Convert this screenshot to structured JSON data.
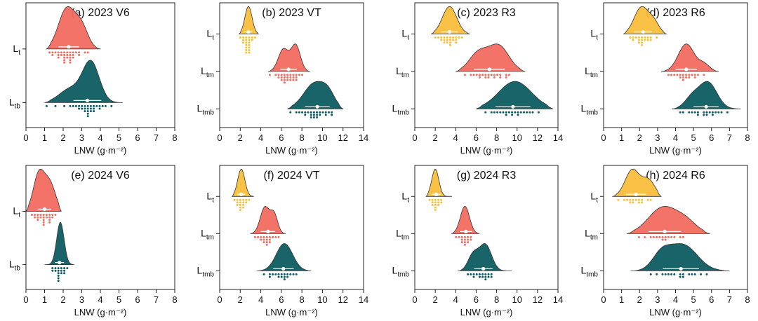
{
  "chart_data": [
    {
      "type": "raincloud",
      "title": "(a) 2023  V6",
      "xlabel": "LNW (g·m⁻²)",
      "xlim": [
        0,
        8
      ],
      "xticks": [
        0,
        1,
        2,
        3,
        4,
        5,
        6,
        7,
        8
      ],
      "series": [
        {
          "name": "Lt",
          "label_main": "L",
          "label_sub": "t",
          "color": "#F36B61",
          "mean": 2.3,
          "sd": 0.55,
          "min": 1.1,
          "max": 4.0,
          "bumps": [
            {
              "c": 2.2,
              "s": 0.45,
              "a": 1.0
            },
            {
              "c": 3.0,
              "s": 0.35,
              "a": 0.5
            }
          ],
          "points": [
            1.2,
            1.4,
            1.5,
            1.6,
            1.7,
            1.8,
            1.8,
            1.9,
            1.9,
            2.0,
            2.0,
            2.1,
            2.1,
            2.1,
            2.2,
            2.2,
            2.2,
            2.3,
            2.3,
            2.3,
            2.4,
            2.4,
            2.5,
            2.5,
            2.6,
            2.7,
            2.8,
            2.9,
            3.1,
            3.4
          ]
        },
        {
          "name": "Ltb",
          "label_main": "L",
          "label_sub": "tb",
          "color": "#0D5C61",
          "mean": 3.3,
          "sd": 0.75,
          "min": 1.0,
          "max": 5.2,
          "bumps": [
            {
              "c": 3.5,
              "s": 0.45,
              "a": 1.0
            },
            {
              "c": 2.4,
              "s": 0.6,
              "a": 0.35
            }
          ],
          "points": [
            1.1,
            1.6,
            2.0,
            2.3,
            2.5,
            2.7,
            2.8,
            2.9,
            3.0,
            3.0,
            3.1,
            3.2,
            3.2,
            3.3,
            3.3,
            3.4,
            3.4,
            3.4,
            3.5,
            3.5,
            3.5,
            3.6,
            3.6,
            3.7,
            3.8,
            3.9,
            4.0,
            4.1,
            4.3,
            4.6
          ]
        }
      ]
    },
    {
      "type": "raincloud",
      "title": "(b) 2023  VT",
      "xlabel": "LNW (g·m⁻²)",
      "xlim": [
        0,
        14
      ],
      "xticks": [
        0,
        2,
        4,
        6,
        8,
        10,
        12,
        14
      ],
      "series": [
        {
          "name": "Lt",
          "label_main": "L",
          "label_sub": "t",
          "color": "#F9BE3B",
          "mean": 2.8,
          "sd": 0.4,
          "min": 1.9,
          "max": 3.8,
          "bumps": [
            {
              "c": 2.8,
              "s": 0.35,
              "a": 1.0
            }
          ],
          "points": [
            2.0,
            2.2,
            2.3,
            2.4,
            2.5,
            2.5,
            2.6,
            2.6,
            2.7,
            2.7,
            2.7,
            2.8,
            2.8,
            2.8,
            2.9,
            2.9,
            3.0,
            3.0,
            3.1,
            3.2,
            3.3
          ]
        },
        {
          "name": "Ltm",
          "label_main": "L",
          "label_sub": "tm",
          "color": "#F36B61",
          "mean": 6.7,
          "sd": 0.8,
          "min": 4.7,
          "max": 8.8,
          "bumps": [
            {
              "c": 6.2,
              "s": 0.5,
              "a": 0.85
            },
            {
              "c": 7.4,
              "s": 0.45,
              "a": 1.0
            }
          ],
          "points": [
            5.0,
            5.4,
            5.6,
            5.8,
            5.9,
            6.0,
            6.1,
            6.2,
            6.2,
            6.3,
            6.4,
            6.5,
            6.6,
            6.7,
            6.8,
            6.9,
            7.0,
            7.1,
            7.2,
            7.3,
            7.4,
            7.5,
            7.6,
            7.8,
            8.0
          ]
        },
        {
          "name": "Ltmb",
          "label_main": "L",
          "label_sub": "tmb",
          "color": "#0D5C61",
          "mean": 9.5,
          "sd": 1.2,
          "min": 6.6,
          "max": 12.0,
          "bumps": [
            {
              "c": 9.3,
              "s": 1.1,
              "a": 1.0
            },
            {
              "c": 10.6,
              "s": 0.6,
              "a": 0.35
            }
          ],
          "points": [
            7.0,
            7.5,
            7.8,
            8.0,
            8.2,
            8.4,
            8.6,
            8.8,
            8.9,
            9.0,
            9.1,
            9.2,
            9.3,
            9.4,
            9.5,
            9.6,
            9.7,
            9.8,
            10.0,
            10.2,
            10.4,
            10.6,
            10.8,
            11.0
          ]
        }
      ]
    },
    {
      "type": "raincloud",
      "title": "(c) 2023  R3",
      "xlabel": "LNW (g·m⁻²)",
      "xlim": [
        0,
        14
      ],
      "xticks": [
        0,
        2,
        4,
        6,
        8,
        10,
        12,
        14
      ],
      "series": [
        {
          "name": "Lt",
          "label_main": "L",
          "label_sub": "t",
          "color": "#F9BE3B",
          "mean": 3.4,
          "sd": 0.8,
          "min": 1.6,
          "max": 5.4,
          "bumps": [
            {
              "c": 3.4,
              "s": 0.7,
              "a": 1.0
            }
          ],
          "points": [
            2.0,
            2.3,
            2.5,
            2.7,
            2.8,
            2.9,
            3.0,
            3.1,
            3.2,
            3.3,
            3.4,
            3.4,
            3.5,
            3.6,
            3.7,
            3.8,
            3.9,
            4.0,
            4.1,
            4.3,
            4.5
          ]
        },
        {
          "name": "Ltm",
          "label_main": "L",
          "label_sub": "tm",
          "color": "#F36B61",
          "mean": 7.3,
          "sd": 1.5,
          "min": 4.0,
          "max": 10.8,
          "bumps": [
            {
              "c": 6.2,
              "s": 0.9,
              "a": 0.7
            },
            {
              "c": 8.2,
              "s": 1.0,
              "a": 1.0
            }
          ],
          "points": [
            5.0,
            5.5,
            5.8,
            6.0,
            6.2,
            6.4,
            6.6,
            6.8,
            7.0,
            7.1,
            7.3,
            7.5,
            7.7,
            7.9,
            8.1,
            8.3,
            8.5,
            8.8,
            9.0,
            9.3
          ]
        },
        {
          "name": "Ltmb",
          "label_main": "L",
          "label_sub": "tmb",
          "color": "#0D5C61",
          "mean": 9.6,
          "sd": 1.7,
          "min": 6.0,
          "max": 13.5,
          "bumps": [
            {
              "c": 9.8,
              "s": 1.6,
              "a": 1.0
            }
          ],
          "points": [
            6.8,
            7.4,
            7.8,
            8.1,
            8.4,
            8.6,
            8.8,
            9.0,
            9.2,
            9.4,
            9.6,
            9.8,
            10.0,
            10.2,
            10.4,
            10.6,
            10.9,
            11.2,
            11.5,
            12.0
          ]
        }
      ]
    },
    {
      "type": "raincloud",
      "title": "(d) 2023  R6",
      "xlabel": "LNW (g·m⁻²)",
      "xlim": [
        0,
        8
      ],
      "xticks": [
        0,
        1,
        2,
        3,
        4,
        5,
        6,
        7,
        8
      ],
      "series": [
        {
          "name": "Lt",
          "label_main": "L",
          "label_sub": "t",
          "color": "#F9BE3B",
          "mean": 2.2,
          "sd": 0.5,
          "min": 1.1,
          "max": 3.5,
          "bumps": [
            {
              "c": 2.1,
              "s": 0.4,
              "a": 1.0
            },
            {
              "c": 2.8,
              "s": 0.3,
              "a": 0.4
            }
          ],
          "points": [
            1.4,
            1.6,
            1.7,
            1.8,
            1.9,
            2.0,
            2.0,
            2.1,
            2.1,
            2.2,
            2.2,
            2.3,
            2.3,
            2.4,
            2.5,
            2.6,
            2.7,
            2.9
          ]
        },
        {
          "name": "Ltm",
          "label_main": "L",
          "label_sub": "tm",
          "color": "#F36B61",
          "mean": 4.6,
          "sd": 0.6,
          "min": 3.2,
          "max": 6.4,
          "bumps": [
            {
              "c": 4.6,
              "s": 0.45,
              "a": 1.0
            },
            {
              "c": 5.6,
              "s": 0.3,
              "a": 0.25
            }
          ],
          "points": [
            3.6,
            3.8,
            4.0,
            4.1,
            4.2,
            4.3,
            4.4,
            4.5,
            4.5,
            4.6,
            4.6,
            4.7,
            4.8,
            4.9,
            5.0,
            5.1,
            5.3,
            5.5
          ]
        },
        {
          "name": "Ltmb",
          "label_main": "L",
          "label_sub": "tmb",
          "color": "#0D5C61",
          "mean": 5.7,
          "sd": 0.7,
          "min": 3.8,
          "max": 7.6,
          "bumps": [
            {
              "c": 5.8,
              "s": 0.5,
              "a": 1.0
            },
            {
              "c": 4.9,
              "s": 0.4,
              "a": 0.4
            }
          ],
          "points": [
            4.2,
            4.5,
            4.7,
            4.9,
            5.1,
            5.2,
            5.3,
            5.5,
            5.6,
            5.7,
            5.8,
            5.9,
            6.0,
            6.1,
            6.2,
            6.4,
            6.6,
            6.9
          ]
        }
      ]
    },
    {
      "type": "raincloud",
      "title": "(e) 2024  V6",
      "xlabel": "LNW (g·m⁻²)",
      "xlim": [
        0,
        8
      ],
      "xticks": [
        0,
        1,
        2,
        3,
        4,
        5,
        6,
        7,
        8
      ],
      "series": [
        {
          "name": "Lt",
          "label_main": "L",
          "label_sub": "t",
          "color": "#F36B61",
          "mean": 1.0,
          "sd": 0.35,
          "min": 0.0,
          "max": 1.9,
          "bumps": [
            {
              "c": 0.7,
              "s": 0.3,
              "a": 1.0
            },
            {
              "c": 1.3,
              "s": 0.3,
              "a": 0.7
            }
          ],
          "points": [
            0.3,
            0.4,
            0.5,
            0.6,
            0.7,
            0.7,
            0.8,
            0.8,
            0.9,
            0.9,
            1.0,
            1.0,
            1.0,
            1.1,
            1.1,
            1.2,
            1.2,
            1.3,
            1.3,
            1.4,
            1.5,
            1.6
          ]
        },
        {
          "name": "Ltb",
          "label_main": "L",
          "label_sub": "tb",
          "color": "#0D5C61",
          "mean": 1.8,
          "sd": 0.25,
          "min": 1.0,
          "max": 2.6,
          "bumps": [
            {
              "c": 1.85,
              "s": 0.2,
              "a": 1.0
            }
          ],
          "points": [
            1.4,
            1.5,
            1.6,
            1.6,
            1.7,
            1.7,
            1.8,
            1.8,
            1.8,
            1.8,
            1.9,
            1.9,
            1.9,
            2.0,
            2.0,
            2.1,
            2.2
          ]
        }
      ]
    },
    {
      "type": "raincloud",
      "title": "(f) 2024  VT",
      "xlabel": "LNW (g·m⁻²)",
      "xlim": [
        0,
        14
      ],
      "xticks": [
        0,
        2,
        4,
        6,
        8,
        10,
        12,
        14
      ],
      "series": [
        {
          "name": "Lt",
          "label_main": "L",
          "label_sub": "t",
          "color": "#F9BE3B",
          "mean": 2.1,
          "sd": 0.4,
          "min": 1.2,
          "max": 3.3,
          "bumps": [
            {
              "c": 2.1,
              "s": 0.35,
              "a": 1.0
            }
          ],
          "points": [
            1.4,
            1.6,
            1.7,
            1.8,
            1.9,
            2.0,
            2.0,
            2.1,
            2.1,
            2.2,
            2.2,
            2.3,
            2.4,
            2.5,
            2.6,
            2.8
          ]
        },
        {
          "name": "Ltm",
          "label_main": "L",
          "label_sub": "tm",
          "color": "#F36B61",
          "mean": 4.7,
          "sd": 0.7,
          "min": 3.0,
          "max": 6.4,
          "bumps": [
            {
              "c": 4.4,
              "s": 0.45,
              "a": 1.0
            },
            {
              "c": 5.3,
              "s": 0.35,
              "a": 0.7
            }
          ],
          "points": [
            3.5,
            3.8,
            4.0,
            4.1,
            4.2,
            4.3,
            4.4,
            4.5,
            4.5,
            4.6,
            4.7,
            4.8,
            4.9,
            5.0,
            5.2,
            5.4,
            5.6
          ]
        },
        {
          "name": "Ltmb",
          "label_main": "L",
          "label_sub": "tmb",
          "color": "#0D5C61",
          "mean": 6.2,
          "sd": 1.0,
          "min": 3.6,
          "max": 8.9,
          "bumps": [
            {
              "c": 6.3,
              "s": 0.8,
              "a": 1.0
            }
          ],
          "points": [
            4.4,
            4.8,
            5.0,
            5.3,
            5.5,
            5.7,
            5.8,
            6.0,
            6.1,
            6.2,
            6.3,
            6.4,
            6.5,
            6.7,
            6.9,
            7.1,
            7.4
          ]
        }
      ]
    },
    {
      "type": "raincloud",
      "title": "(g) 2024  R3",
      "xlabel": "LNW (g·m⁻²)",
      "xlim": [
        0,
        14
      ],
      "xticks": [
        0,
        2,
        4,
        6,
        8,
        10,
        12,
        14
      ],
      "series": [
        {
          "name": "Lt",
          "label_main": "L",
          "label_sub": "t",
          "color": "#F9BE3B",
          "mean": 2.1,
          "sd": 0.45,
          "min": 1.1,
          "max": 3.6,
          "bumps": [
            {
              "c": 2.0,
              "s": 0.35,
              "a": 1.0
            }
          ],
          "points": [
            1.4,
            1.6,
            1.7,
            1.8,
            1.9,
            2.0,
            2.0,
            2.1,
            2.1,
            2.2,
            2.3,
            2.4,
            2.5,
            2.7
          ]
        },
        {
          "name": "Ltm",
          "label_main": "L",
          "label_sub": "tm",
          "color": "#F36B61",
          "mean": 5.0,
          "sd": 0.6,
          "min": 3.6,
          "max": 6.3,
          "bumps": [
            {
              "c": 4.9,
              "s": 0.45,
              "a": 1.0
            }
          ],
          "points": [
            4.1,
            4.3,
            4.5,
            4.6,
            4.7,
            4.8,
            4.9,
            4.9,
            5.0,
            5.1,
            5.2,
            5.3,
            5.4,
            5.6
          ]
        },
        {
          "name": "Ltmb",
          "label_main": "L",
          "label_sub": "tmb",
          "color": "#0D5C61",
          "mean": 6.7,
          "sd": 0.9,
          "min": 4.2,
          "max": 9.5,
          "bumps": [
            {
              "c": 6.9,
              "s": 0.6,
              "a": 1.0
            },
            {
              "c": 5.7,
              "s": 0.5,
              "a": 0.6
            }
          ],
          "points": [
            5.2,
            5.5,
            5.7,
            5.9,
            6.1,
            6.3,
            6.4,
            6.6,
            6.7,
            6.8,
            6.9,
            7.0,
            7.1,
            7.2,
            7.4,
            7.6
          ]
        }
      ]
    },
    {
      "type": "raincloud",
      "title": "(h) 2024  R6",
      "xlabel": "LNW (g·m⁻²)",
      "xlim": [
        0,
        8
      ],
      "xticks": [
        0,
        1,
        2,
        3,
        4,
        5,
        6,
        7,
        8
      ],
      "series": [
        {
          "name": "Lt",
          "label_main": "L",
          "label_sub": "t",
          "color": "#F9BE3B",
          "mean": 1.8,
          "sd": 0.55,
          "min": 0.5,
          "max": 3.2,
          "bumps": [
            {
              "c": 1.6,
              "s": 0.4,
              "a": 1.0
            },
            {
              "c": 2.5,
              "s": 0.35,
              "a": 0.6
            }
          ],
          "points": [
            0.9,
            1.1,
            1.3,
            1.4,
            1.5,
            1.6,
            1.7,
            1.8,
            1.9,
            2.0,
            2.1,
            2.2,
            2.4,
            2.6
          ]
        },
        {
          "name": "Ltm",
          "label_main": "L",
          "label_sub": "tm",
          "color": "#F36B61",
          "mean": 3.4,
          "sd": 0.9,
          "min": 1.3,
          "max": 5.9,
          "bumps": [
            {
              "c": 3.3,
              "s": 0.8,
              "a": 1.0
            },
            {
              "c": 4.6,
              "s": 0.6,
              "a": 0.4
            }
          ],
          "points": [
            2.0,
            2.3,
            2.6,
            2.8,
            3.0,
            3.1,
            3.2,
            3.3,
            3.4,
            3.5,
            3.6,
            3.8,
            4.0,
            4.2,
            4.5
          ]
        },
        {
          "name": "Ltmb",
          "label_main": "L",
          "label_sub": "tmb",
          "color": "#0D5C61",
          "mean": 4.3,
          "sd": 1.0,
          "min": 1.5,
          "max": 7.0,
          "bumps": [
            {
              "c": 4.4,
              "s": 0.8,
              "a": 1.0
            },
            {
              "c": 3.2,
              "s": 0.5,
              "a": 0.55
            }
          ],
          "points": [
            2.6,
            3.0,
            3.2,
            3.4,
            3.6,
            3.8,
            4.0,
            4.2,
            4.3,
            4.4,
            4.5,
            4.7,
            4.9,
            5.1,
            5.4,
            5.8
          ]
        }
      ]
    }
  ]
}
